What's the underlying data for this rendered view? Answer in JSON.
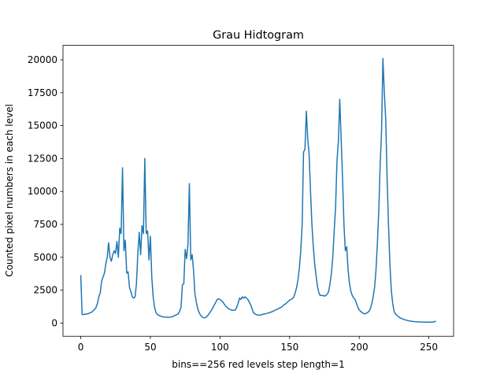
{
  "chart_data": {
    "type": "line",
    "title": "Grau Hidtogram",
    "x_label": "bins==256 red levels step length=1",
    "y_label": "Counted pixel numbers in each level",
    "color": "#1f77b4",
    "xlim": [
      -12.75,
      267.75
    ],
    "xticks": [
      0,
      50,
      100,
      150,
      200,
      250
    ],
    "ylim": [
      -1000,
      21100
    ],
    "yticks": [
      0,
      2500,
      5000,
      7500,
      10000,
      12500,
      15000,
      17500,
      20000
    ],
    "grid": false,
    "x": [
      0,
      1,
      2,
      3,
      4,
      5,
      6,
      7,
      8,
      9,
      10,
      11,
      12,
      13,
      14,
      15,
      16,
      17,
      18,
      19,
      20,
      21,
      22,
      23,
      24,
      25,
      26,
      27,
      28,
      29,
      30,
      31,
      32,
      33,
      34,
      35,
      36,
      37,
      38,
      39,
      40,
      41,
      42,
      43,
      44,
      45,
      46,
      47,
      48,
      49,
      50,
      51,
      52,
      53,
      54,
      55,
      56,
      57,
      58,
      59,
      60,
      61,
      62,
      63,
      64,
      65,
      66,
      67,
      68,
      69,
      70,
      71,
      72,
      73,
      74,
      75,
      76,
      77,
      78,
      79,
      80,
      81,
      82,
      83,
      84,
      85,
      86,
      87,
      88,
      89,
      90,
      91,
      92,
      93,
      94,
      95,
      96,
      97,
      98,
      99,
      100,
      101,
      102,
      103,
      104,
      105,
      106,
      107,
      108,
      109,
      110,
      111,
      112,
      113,
      114,
      115,
      116,
      117,
      118,
      119,
      120,
      121,
      122,
      123,
      124,
      125,
      126,
      127,
      128,
      129,
      130,
      131,
      132,
      133,
      134,
      135,
      136,
      137,
      138,
      139,
      140,
      141,
      142,
      143,
      144,
      145,
      146,
      147,
      148,
      149,
      150,
      151,
      152,
      153,
      154,
      155,
      156,
      157,
      158,
      159,
      160,
      161,
      162,
      163,
      164,
      165,
      166,
      167,
      168,
      169,
      170,
      171,
      172,
      173,
      174,
      175,
      176,
      177,
      178,
      179,
      180,
      181,
      182,
      183,
      184,
      185,
      186,
      187,
      188,
      189,
      190,
      191,
      192,
      193,
      194,
      195,
      196,
      197,
      198,
      199,
      200,
      201,
      202,
      203,
      204,
      205,
      206,
      207,
      208,
      209,
      210,
      211,
      212,
      213,
      214,
      215,
      216,
      217,
      218,
      219,
      220,
      221,
      222,
      223,
      224,
      225,
      226,
      227,
      228,
      229,
      230,
      231,
      232,
      233,
      234,
      235,
      236,
      237,
      238,
      239,
      240,
      241,
      242,
      243,
      244,
      245,
      246,
      247,
      248,
      249,
      250,
      251,
      252,
      253,
      254,
      255
    ],
    "values": [
      3650,
      650,
      650,
      680,
      700,
      700,
      750,
      800,
      850,
      950,
      1050,
      1200,
      1500,
      2000,
      2300,
      3200,
      3500,
      3800,
      4500,
      5000,
      6100,
      5000,
      4700,
      5200,
      5500,
      5300,
      6200,
      5000,
      7200,
      6800,
      11800,
      5500,
      6300,
      3800,
      3900,
      2700,
      2400,
      2000,
      1900,
      2000,
      3000,
      5300,
      6900,
      5200,
      7400,
      6800,
      12500,
      6800,
      7000,
      4800,
      6600,
      3500,
      2000,
      1200,
      800,
      650,
      600,
      550,
      500,
      480,
      470,
      460,
      450,
      440,
      450,
      470,
      500,
      550,
      600,
      650,
      700,
      900,
      1200,
      2900,
      3000,
      5600,
      4900,
      6000,
      10600,
      4800,
      5200,
      4000,
      2200,
      1600,
      1100,
      800,
      600,
      500,
      420,
      400,
      450,
      550,
      700,
      850,
      1000,
      1200,
      1400,
      1600,
      1800,
      1850,
      1800,
      1700,
      1600,
      1450,
      1300,
      1200,
      1100,
      1050,
      1000,
      980,
      970,
      1000,
      1200,
      1500,
      1900,
      1800,
      2000,
      1900,
      2000,
      1900,
      1800,
      1600,
      1400,
      1100,
      800,
      700,
      650,
      620,
      600,
      620,
      650,
      680,
      700,
      720,
      750,
      780,
      820,
      850,
      900,
      950,
      1000,
      1050,
      1100,
      1150,
      1200,
      1300,
      1400,
      1450,
      1550,
      1650,
      1750,
      1800,
      1850,
      2000,
      2300,
      2700,
      3300,
      4200,
      5500,
      7500,
      13000,
      13200,
      16100,
      14000,
      12800,
      10000,
      7500,
      5800,
      4500,
      3600,
      2800,
      2300,
      2100,
      2100,
      2100,
      2050,
      2100,
      2200,
      2400,
      3000,
      3800,
      5000,
      7000,
      8800,
      12300,
      13800,
      17000,
      14000,
      11000,
      7500,
      5500,
      5800,
      4000,
      3000,
      2400,
      2100,
      1900,
      1800,
      1500,
      1200,
      1000,
      900,
      800,
      750,
      700,
      750,
      800,
      900,
      1100,
      1500,
      2000,
      2700,
      4000,
      6000,
      8500,
      12000,
      14500,
      20100,
      17500,
      15500,
      11000,
      7500,
      4500,
      2500,
      1500,
      900,
      700,
      600,
      500,
      420,
      370,
      320,
      280,
      250,
      220,
      190,
      170,
      150,
      130,
      120,
      110,
      100,
      95,
      90,
      85,
      80,
      78,
      75,
      72,
      70,
      70,
      70,
      70,
      80,
      100,
      160
    ]
  }
}
